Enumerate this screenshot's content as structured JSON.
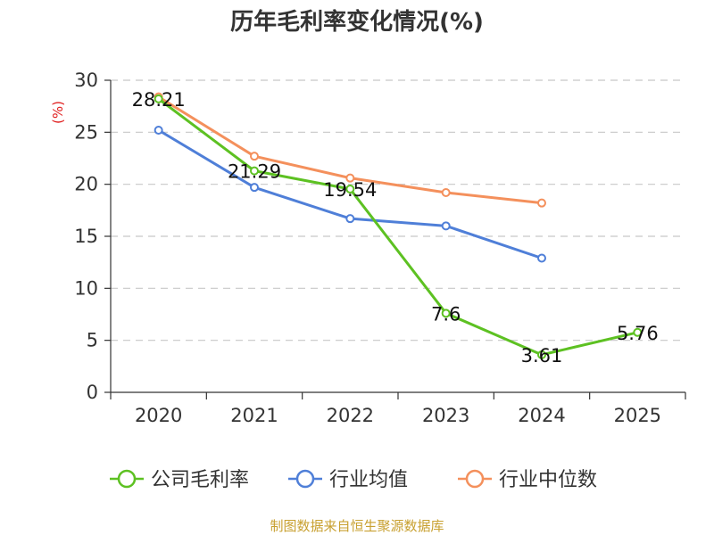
{
  "chart_data": {
    "type": "line",
    "title": "历年毛利率变化情况(%)",
    "ylabel": "(%)",
    "xlabel": "",
    "ylim": [
      0,
      30
    ],
    "yticks": [
      0,
      5,
      10,
      15,
      20,
      25,
      30
    ],
    "categories": [
      "2020",
      "2021",
      "2022",
      "2023",
      "2024",
      "2025"
    ],
    "grid": true,
    "legend": "bottom",
    "series": [
      {
        "name": "公司毛利率",
        "color": "#5dc122",
        "values": [
          28.21,
          21.29,
          19.54,
          7.6,
          3.61,
          5.76
        ],
        "labels": [
          "28.21",
          "21.29",
          "19.54",
          "7.6",
          "3.61",
          "5.76"
        ]
      },
      {
        "name": "行业均值",
        "color": "#4f7fd8",
        "values": [
          25.2,
          19.7,
          16.7,
          16.0,
          12.9,
          null
        ]
      },
      {
        "name": "行业中位数",
        "color": "#f4905c",
        "values": [
          28.4,
          22.7,
          20.6,
          19.2,
          18.2,
          null
        ]
      }
    ]
  },
  "source": "制图数据来自恒生聚源数据库"
}
